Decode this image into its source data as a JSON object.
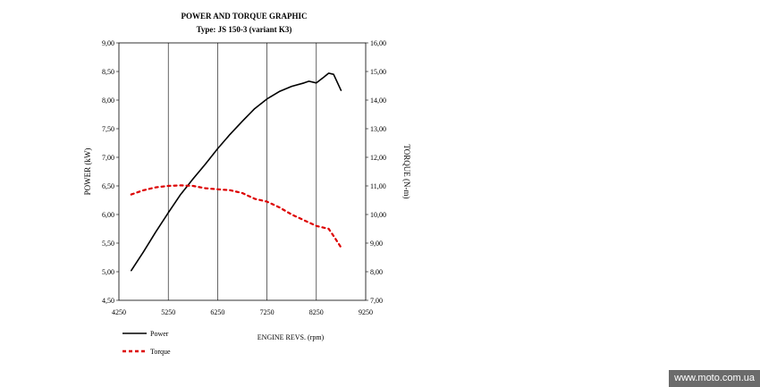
{
  "chart_data": {
    "type": "line",
    "title": "POWER AND TORQUE GRAPHIC",
    "subtitle": "Type: JS 150-3 (variant K3)",
    "xlabel": "ENGINE REVS. (rpm)",
    "ylabel_left": "POWER (kW)",
    "ylabel_right": "TORQUE (N-m)",
    "xlim": [
      4250,
      9250
    ],
    "ylim_left": [
      4.5,
      9.0
    ],
    "ylim_right": [
      7.0,
      16.0
    ],
    "x_ticks": [
      "4250",
      "5250",
      "6250",
      "7250",
      "8250",
      "9250"
    ],
    "y_ticks_left": [
      "4,50",
      "5,00",
      "5,50",
      "6,00",
      "6,50",
      "7,00",
      "7,50",
      "8,00",
      "8,50",
      "9,00"
    ],
    "y_ticks_right": [
      "7,00",
      "8,00",
      "9,00",
      "10,00",
      "11,00",
      "12,00",
      "13,00",
      "14,00",
      "15,00",
      "16,00"
    ],
    "grid": "vertical",
    "legend_position": "bottom-left",
    "series": [
      {
        "name": "Power",
        "axis": "left",
        "color": "#000000",
        "style": "solid",
        "x": [
          4500,
          4750,
          5000,
          5250,
          5500,
          5750,
          6000,
          6250,
          6500,
          6750,
          7000,
          7250,
          7500,
          7750,
          8000,
          8100,
          8250,
          8400,
          8500,
          8600,
          8750
        ],
        "y": [
          5.02,
          5.35,
          5.7,
          6.03,
          6.35,
          6.62,
          6.88,
          7.15,
          7.4,
          7.63,
          7.85,
          8.02,
          8.15,
          8.24,
          8.3,
          8.33,
          8.3,
          8.4,
          8.47,
          8.45,
          8.17
        ]
      },
      {
        "name": "Torque",
        "axis": "right",
        "color": "#dd0000",
        "style": "dashed",
        "x": [
          4500,
          4750,
          5000,
          5250,
          5500,
          5750,
          6000,
          6250,
          6500,
          6750,
          7000,
          7250,
          7500,
          7750,
          8000,
          8250,
          8500,
          8600,
          8750
        ],
        "y": [
          10.7,
          10.85,
          10.95,
          11.0,
          11.02,
          11.0,
          10.92,
          10.88,
          10.85,
          10.75,
          10.55,
          10.45,
          10.25,
          10.0,
          9.8,
          9.6,
          9.5,
          9.25,
          8.85
        ]
      }
    ]
  },
  "watermark": "www.moto.com.ua"
}
